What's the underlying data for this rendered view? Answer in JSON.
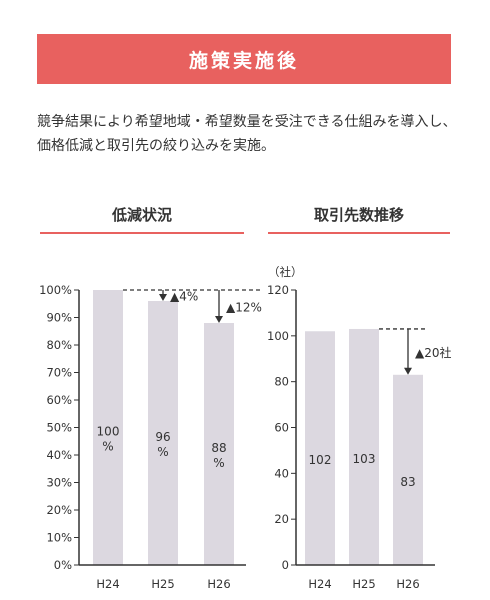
{
  "banner": {
    "title": "施策実施後"
  },
  "intro": {
    "text": "競争結果により希望地域・希望数量を受注できる仕組みを導入し、価格低減と取引先の絞り込みを実施。"
  },
  "colors": {
    "accent": "#e8615f",
    "bar": "#dcd8e0",
    "axis": "#333333"
  },
  "chart_data": [
    {
      "type": "bar",
      "title": "低減状況",
      "categories": [
        "H24",
        "H25",
        "H26"
      ],
      "values": [
        100,
        96,
        88
      ],
      "value_labels": [
        "100\n%",
        "96\n%",
        "88\n%"
      ],
      "ylim": [
        0,
        100
      ],
      "yticks": [
        "0%",
        "10%",
        "20%",
        "30%",
        "40%",
        "50%",
        "60%",
        "70%",
        "80%",
        "90%",
        "100%"
      ],
      "unit": "",
      "annotations": [
        {
          "from": "H24",
          "to": "H25",
          "text": "▲4%"
        },
        {
          "from": "H24",
          "to": "H26",
          "text": "▲12%"
        }
      ]
    },
    {
      "type": "bar",
      "title": "取引先数推移",
      "categories": [
        "H24",
        "H25",
        "H26"
      ],
      "values": [
        102,
        103,
        83
      ],
      "value_labels": [
        "102",
        "103",
        "83"
      ],
      "ylim": [
        0,
        120
      ],
      "yticks": [
        "0",
        "20",
        "40",
        "60",
        "80",
        "100",
        "120"
      ],
      "unit": "（社）",
      "annotations": [
        {
          "from": "H25",
          "to": "H26",
          "text": "▲20社"
        }
      ]
    }
  ]
}
